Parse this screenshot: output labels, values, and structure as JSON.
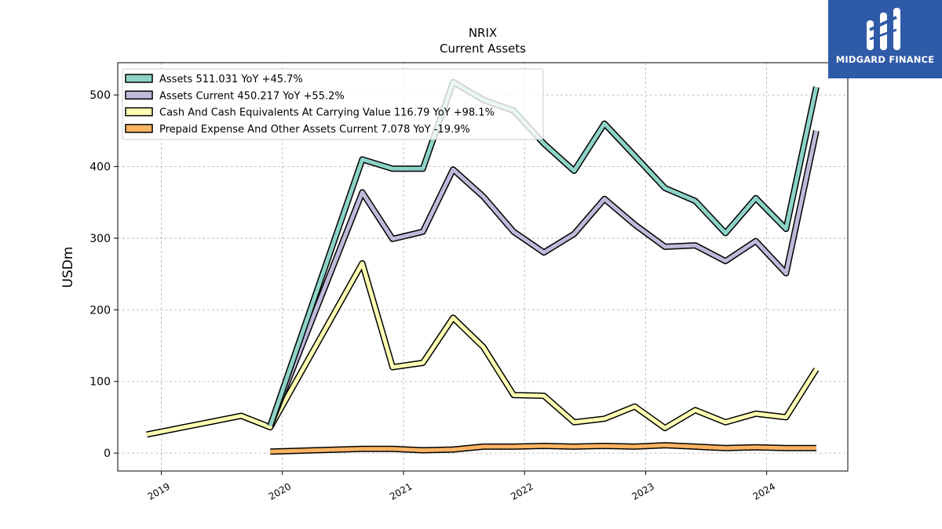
{
  "brand": {
    "name": "MIDGARD FINANCE",
    "color": "#2f5aa8"
  },
  "chart_data": {
    "type": "line",
    "title": "NRIX",
    "subtitle": "Current  Assets",
    "ylabel": "USDm",
    "xlabel": "",
    "ylim": [
      -25,
      545
    ],
    "xlim": [
      2018.64,
      2024.67
    ],
    "yticks": [
      0,
      100,
      200,
      300,
      400,
      500
    ],
    "xticks": [
      2019,
      2020,
      2021,
      2022,
      2023,
      2024
    ],
    "grid": true,
    "legend_position": "top-left",
    "series": [
      {
        "name": "Assets",
        "legend": "Assets  511.031 YoY +45.7%",
        "color": "#8dd3c7",
        "x": [
          2019.9,
          2020.66,
          2020.91,
          2021.16,
          2021.41,
          2021.66,
          2021.91,
          2022.16,
          2022.41,
          2022.66,
          2022.91,
          2023.16,
          2023.41,
          2023.66,
          2023.91,
          2024.16,
          2024.41
        ],
        "values": [
          38,
          410,
          397,
          397,
          518,
          493,
          478,
          432,
          394,
          460,
          415,
          370,
          352,
          307,
          356,
          313,
          511
        ]
      },
      {
        "name": "Assets Current",
        "legend": "Assets Current  450.217 YoY +55.2%",
        "color": "#bebada",
        "x": [
          2019.9,
          2020.66,
          2020.91,
          2021.16,
          2021.41,
          2021.66,
          2021.91,
          2022.16,
          2022.41,
          2022.66,
          2022.91,
          2023.16,
          2023.41,
          2023.66,
          2023.91,
          2024.16,
          2024.41
        ],
        "values": [
          38,
          364,
          299,
          309,
          396,
          358,
          309,
          280,
          306,
          355,
          319,
          288,
          290,
          268,
          296,
          251,
          450
        ]
      },
      {
        "name": "Cash And Cash Equivalents At Carrying Value",
        "legend": "Cash And Cash Equivalents At Carrying Value  116.79 YoY +98.1%",
        "color": "#ffffb3",
        "x": [
          2018.88,
          2019.66,
          2019.9,
          2020.66,
          2020.91,
          2021.16,
          2021.41,
          2021.66,
          2021.91,
          2022.16,
          2022.41,
          2022.66,
          2022.91,
          2023.16,
          2023.41,
          2023.66,
          2023.91,
          2024.16,
          2024.41
        ],
        "values": [
          26,
          52,
          36,
          265,
          120,
          126,
          189,
          148,
          81,
          80,
          43,
          48,
          65,
          35,
          60,
          43,
          55,
          50,
          117
        ]
      },
      {
        "name": "Prepaid Expense And Other Assets Current",
        "legend": "Prepaid Expense And Other Assets Current  7.078 YoY -19.9%",
        "color": "#fdb462",
        "x": [
          2019.9,
          2020.66,
          2020.91,
          2021.16,
          2021.41,
          2021.66,
          2021.91,
          2022.16,
          2022.41,
          2022.66,
          2022.91,
          2023.16,
          2023.41,
          2023.66,
          2023.91,
          2024.16,
          2024.41
        ],
        "values": [
          2,
          6,
          6,
          4,
          5,
          9,
          9,
          10,
          9,
          10,
          9,
          11,
          9,
          7,
          8,
          7,
          7
        ]
      }
    ]
  }
}
